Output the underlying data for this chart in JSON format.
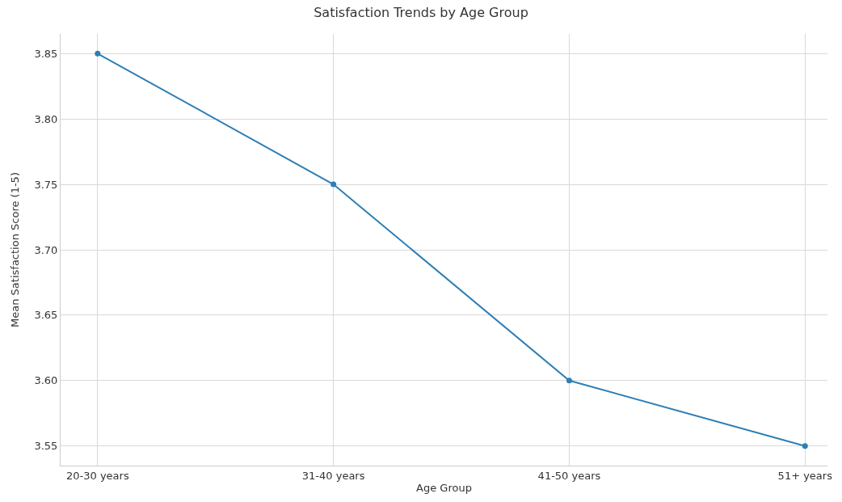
{
  "chart_data": {
    "type": "line",
    "title": "Satisfaction Trends by Age Group",
    "xlabel": "Age Group",
    "ylabel": "Mean Satisfaction Score (1-5)",
    "categories": [
      "20-30 years",
      "31-40 years",
      "41-50 years",
      "51+ years"
    ],
    "series": [
      {
        "color": "#2e7fb5",
        "values": [
          3.85,
          3.75,
          3.6,
          3.55
        ]
      }
    ],
    "ylim": [
      3.535,
      3.865
    ],
    "yticks": [
      {
        "value": 3.55,
        "label": "3.55"
      },
      {
        "value": 3.6,
        "label": "3.60"
      },
      {
        "value": 3.65,
        "label": "3.65"
      },
      {
        "value": 3.7,
        "label": "3.70"
      },
      {
        "value": 3.75,
        "label": "3.75"
      },
      {
        "value": 3.8,
        "label": "3.80"
      },
      {
        "value": 3.85,
        "label": "3.85"
      }
    ],
    "grid": true,
    "marker": "circle",
    "line_style": "solid"
  }
}
